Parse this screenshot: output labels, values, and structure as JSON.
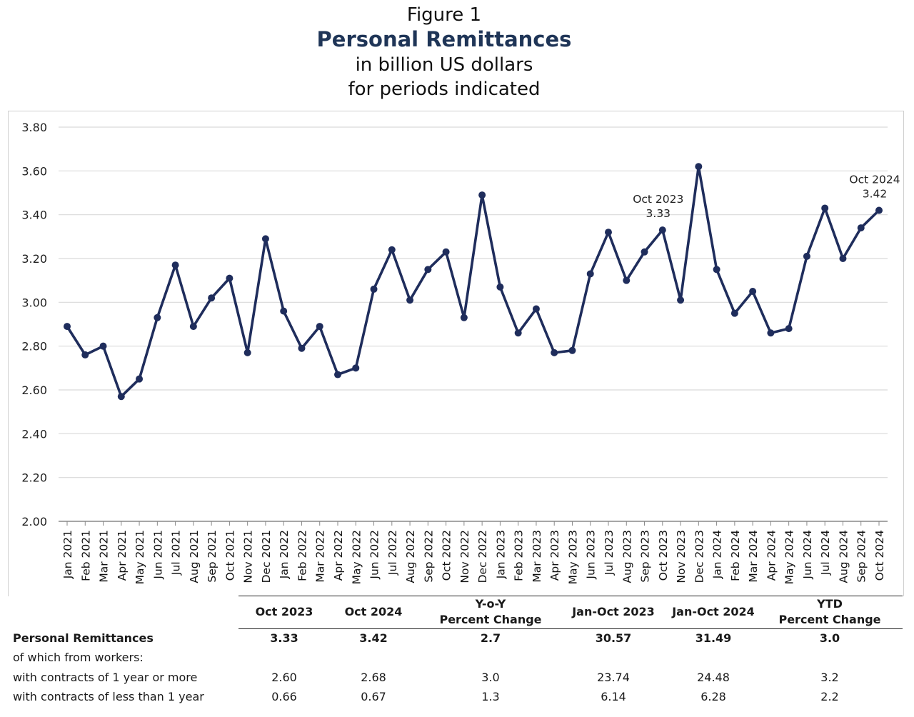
{
  "header": {
    "figure_label": "Figure 1",
    "title": "Personal Remittances",
    "subtitle_line1": "in billion US dollars",
    "subtitle_line2": "for periods indicated"
  },
  "chart_data": {
    "type": "line",
    "ylim": [
      2.0,
      3.8
    ],
    "y_ticks": [
      "2.00",
      "2.20",
      "2.40",
      "2.60",
      "2.80",
      "3.00",
      "3.20",
      "3.40",
      "3.60",
      "3.80"
    ],
    "grid": true,
    "line_color": "#1f2d5c",
    "categories": [
      "Jan 2021",
      "Feb 2021",
      "Mar 2021",
      "Apr 2021",
      "May 2021",
      "Jun 2021",
      "Jul 2021",
      "Aug 2021",
      "Sep 2021",
      "Oct 2021",
      "Nov 2021",
      "Dec 2021",
      "Jan 2022",
      "Feb 2022",
      "Mar 2022",
      "Apr 2022",
      "May 2022",
      "Jun 2022",
      "Jul 2022",
      "Aug 2022",
      "Sep 2022",
      "Oct 2022",
      "Nov 2022",
      "Dec 2022",
      "Jan 2023",
      "Feb 2023",
      "Mar 2023",
      "Apr 2023",
      "May 2023",
      "Jun 2023",
      "Jul 2023",
      "Aug 2023",
      "Sep 2023",
      "Oct 2023",
      "Nov 2023",
      "Dec 2023",
      "Jan 2024",
      "Feb 2024",
      "Mar 2024",
      "Apr 2024",
      "May 2024",
      "Jun 2024",
      "Jul 2024",
      "Aug 2024",
      "Sep 2024",
      "Oct 2024"
    ],
    "values": [
      2.89,
      2.76,
      2.8,
      2.57,
      2.65,
      2.93,
      3.17,
      2.89,
      3.02,
      3.11,
      2.77,
      3.29,
      2.96,
      2.79,
      2.89,
      2.67,
      2.7,
      3.06,
      3.24,
      3.01,
      3.15,
      3.23,
      2.93,
      3.49,
      3.07,
      2.86,
      2.97,
      2.77,
      2.78,
      3.13,
      3.32,
      3.1,
      3.23,
      3.33,
      3.01,
      3.62,
      3.15,
      2.95,
      3.05,
      2.86,
      2.88,
      3.21,
      3.43,
      3.2,
      3.34,
      3.42
    ],
    "annotations": [
      {
        "index": 33,
        "label": "Oct 2023",
        "value_label": "3.33"
      },
      {
        "index": 45,
        "label": "Oct 2024",
        "value_label": "3.42"
      }
    ]
  },
  "table": {
    "columns": [
      {
        "line1": "",
        "line2": "Oct 2023"
      },
      {
        "line1": "",
        "line2": "Oct 2024"
      },
      {
        "line1": "Y-o-Y",
        "line2": "Percent Change"
      },
      {
        "line1": "",
        "line2": "Jan-Oct 2023"
      },
      {
        "line1": "",
        "line2": "Jan-Oct 2024"
      },
      {
        "line1": "YTD",
        "line2": "Percent Change"
      }
    ],
    "rows": [
      {
        "label": "Personal Remittances",
        "bold": true,
        "values": [
          "3.33",
          "3.42",
          "2.7",
          "30.57",
          "31.49",
          "3.0"
        ]
      },
      {
        "label": "of which from workers:",
        "bold": false,
        "values": [
          "",
          "",
          "",
          "",
          "",
          ""
        ]
      },
      {
        "label": "with contracts of 1 year or more",
        "bold": false,
        "values": [
          "2.60",
          "2.68",
          "3.0",
          "23.74",
          "24.48",
          "3.2"
        ]
      },
      {
        "label": "with contracts of less than 1 year",
        "bold": false,
        "values": [
          "0.66",
          "0.67",
          "1.3",
          "6.14",
          "6.28",
          "2.2"
        ]
      }
    ]
  }
}
